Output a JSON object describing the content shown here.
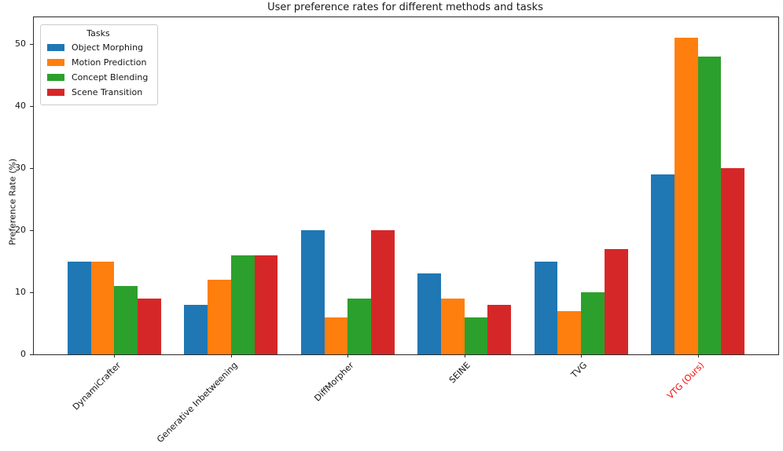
{
  "chart_data": {
    "type": "bar",
    "title": "User preference rates for different methods and tasks",
    "xlabel": "",
    "ylabel": "Preference Rate (%)",
    "legend_title": "Tasks",
    "legend_position": "upper left",
    "grid": false,
    "categories": [
      "DynamiCrafter",
      "Generative Inbetweening",
      "DiffMorpher",
      "SEINE",
      "TVG",
      "VTG (Ours)"
    ],
    "series": [
      {
        "name": "Object Morphing",
        "color": "#1f77b4",
        "values": [
          15,
          8,
          20,
          13,
          15,
          29
        ]
      },
      {
        "name": "Motion Prediction",
        "color": "#ff7f0e",
        "values": [
          15,
          12,
          6,
          9,
          7,
          51
        ]
      },
      {
        "name": "Concept Blending",
        "color": "#2ca02c",
        "values": [
          11,
          16,
          9,
          6,
          10,
          48
        ]
      },
      {
        "name": "Scene Transition",
        "color": "#d62728",
        "values": [
          9,
          16,
          20,
          8,
          17,
          30
        ]
      }
    ],
    "yticks": [
      0,
      10,
      20,
      30,
      40,
      50
    ],
    "ylim": [
      0,
      54.3
    ],
    "highlight_category": "VTG (Ours)",
    "highlight_color": "#ff0000"
  }
}
